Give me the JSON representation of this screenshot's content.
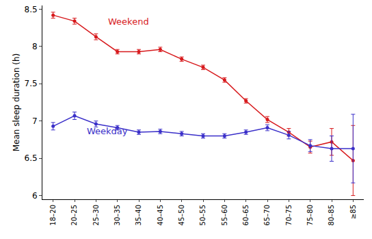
{
  "chart_data": {
    "type": "line",
    "y_label": "Mean sleep duration (h)",
    "categories": [
      "18–20",
      "20–25",
      "25–30",
      "30–35",
      "35–40",
      "40–45",
      "45–50",
      "50–55",
      "55–60",
      "60–65",
      "65–70",
      "70–75",
      "75–80",
      "80–85",
      "≥85"
    ],
    "series": [
      {
        "name": "Weekend",
        "color": "#d7191c",
        "marker": "circle",
        "line_style": "solid",
        "values": [
          8.42,
          8.34,
          8.13,
          7.93,
          7.93,
          7.96,
          7.83,
          7.72,
          7.55,
          7.27,
          7.02,
          6.85,
          6.65,
          6.72,
          6.47
        ],
        "error": [
          0.04,
          0.04,
          0.04,
          0.03,
          0.03,
          0.03,
          0.03,
          0.03,
          0.03,
          0.03,
          0.04,
          0.05,
          0.08,
          0.18,
          0.47
        ]
      },
      {
        "name": "Weekday",
        "color": "#3a2fc9",
        "marker": "circle",
        "line_style": "solid",
        "values": [
          6.93,
          7.07,
          6.96,
          6.91,
          6.85,
          6.86,
          6.83,
          6.8,
          6.8,
          6.85,
          6.91,
          6.81,
          6.67,
          6.63,
          6.63
        ],
        "error": [
          0.05,
          0.05,
          0.04,
          0.03,
          0.03,
          0.03,
          0.03,
          0.03,
          0.03,
          0.03,
          0.04,
          0.05,
          0.08,
          0.17,
          0.46
        ]
      }
    ],
    "ylim": [
      5.95,
      8.55
    ],
    "yticks": [
      6,
      6.5,
      7,
      7.5,
      8,
      8.5
    ],
    "grid": false
  }
}
